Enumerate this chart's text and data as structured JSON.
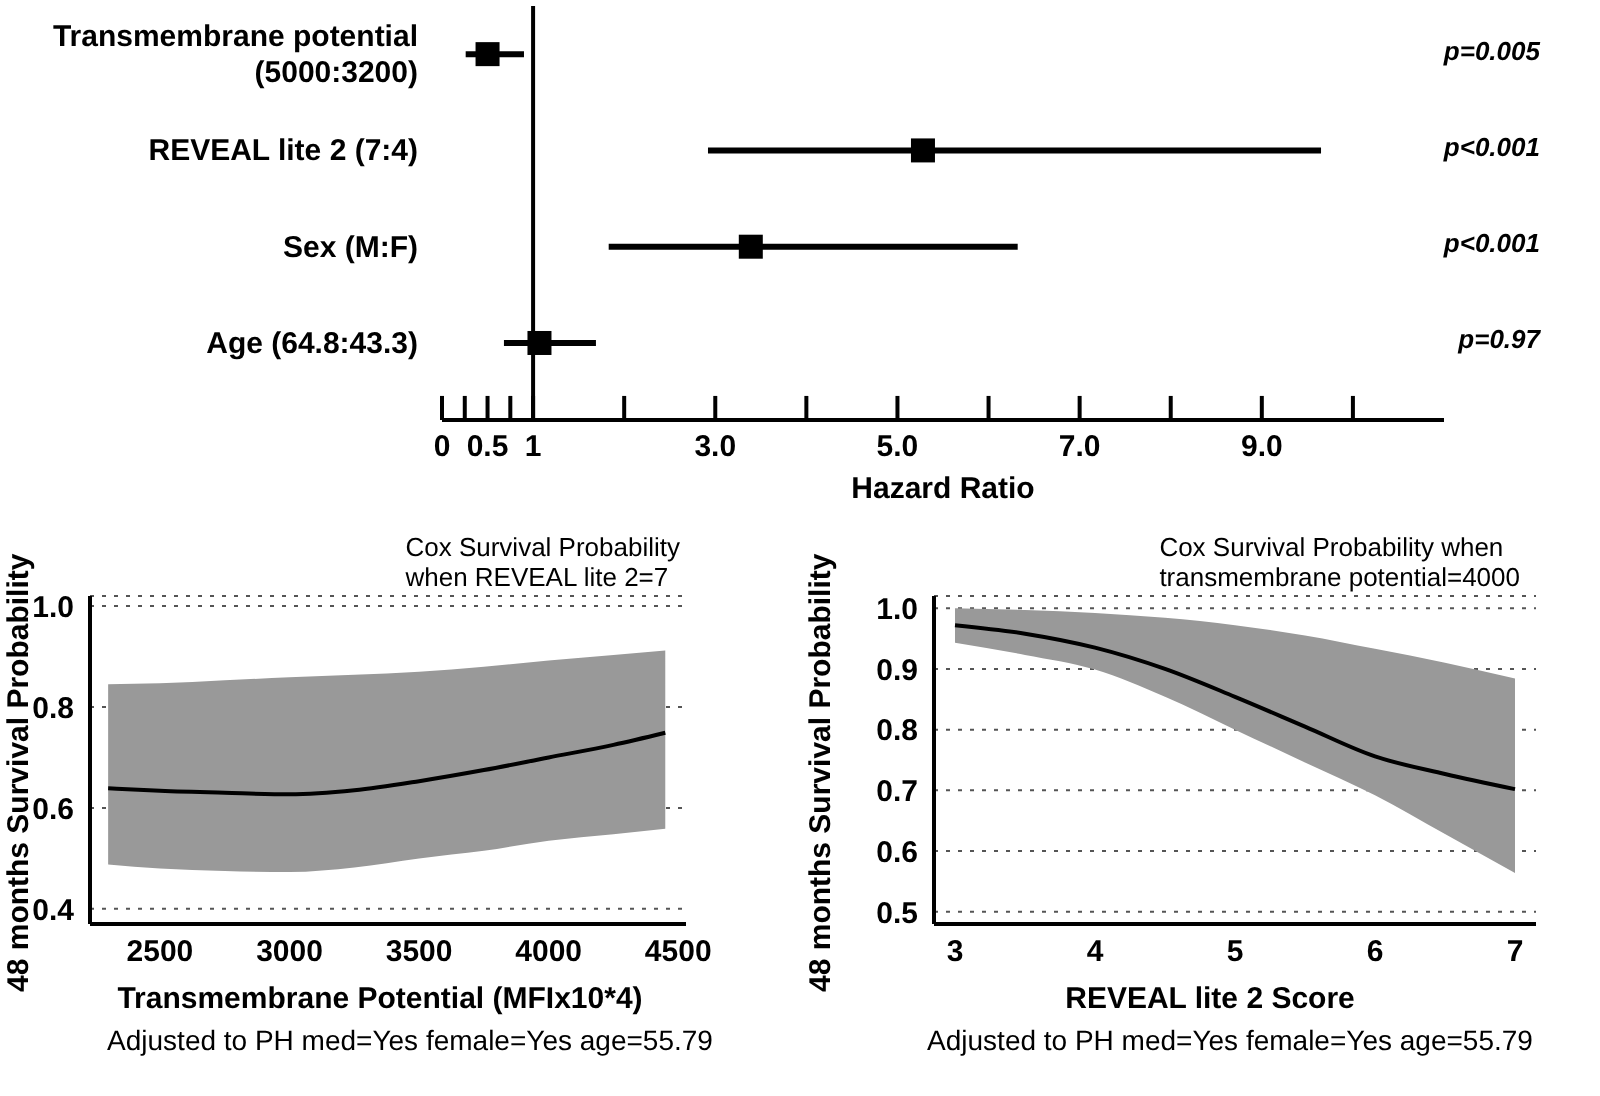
{
  "chart_data": [
    {
      "type": "scatter",
      "orientation": "horizontal",
      "categories": [
        "Transmembrane potential (5000:3200)",
        "REVEAL lite 2 (7:4)",
        "Sex (M:F)",
        "Age (64.8:43.3)"
      ],
      "values": [
        0.5,
        5.28,
        3.39,
        1.07
      ],
      "errors": [
        [
          0.26,
          0.9
        ],
        [
          2.92,
          9.65
        ],
        [
          1.83,
          6.32
        ],
        [
          0.68,
          1.69
        ]
      ],
      "color": "#000000",
      "marker": "square",
      "xlabel": "Hazard Ratio",
      "xlim": [
        0,
        11
      ],
      "xticks": [
        0,
        {
          "value": 0.25,
          "label": null
        },
        0.5,
        {
          "value": 0.75,
          "label": null
        },
        1,
        {
          "value": 2,
          "label": null
        },
        {
          "value": 3,
          "label": "3.0"
        },
        {
          "value": 4,
          "label": null
        },
        {
          "value": 5,
          "label": "5.0"
        },
        {
          "value": 6,
          "label": null
        },
        {
          "value": 7,
          "label": "7.0"
        },
        {
          "value": 8,
          "label": null
        },
        {
          "value": 9,
          "label": "9.0"
        },
        {
          "value": 10,
          "label": null
        }
      ],
      "ref_lines": [
        {
          "axis": "x",
          "value": 1,
          "color": "#000000"
        }
      ],
      "annotations": [
        "p=0.005",
        "p<0.001",
        "p<0.001",
        "p=0.97"
      ]
    },
    {
      "type": "line",
      "title": "Cox Survival Probability\nwhen REVEAL lite 2=7",
      "xlabel": "Transmembrane Potential (MFIx10*4)",
      "ylabel": "48 months Survival Probability",
      "annotations": [
        "Adjusted to PH med=Yes female=Yes age=55.79"
      ],
      "xlim": [
        2230,
        4530
      ],
      "xticks": [
        2500,
        3000,
        3500,
        4000,
        4500
      ],
      "ylim": [
        0.37,
        1.02
      ],
      "yticks": [
        {
          "value": 0.4,
          "label": "0.4"
        },
        {
          "value": 0.6,
          "label": "0.6"
        },
        {
          "value": 0.8,
          "label": "0.8"
        },
        {
          "value": 1,
          "label": "1.0"
        }
      ],
      "grid": "y",
      "marker": "none",
      "line_style": "solid",
      "x": [
        2300,
        2500,
        2750,
        3000,
        3250,
        3500,
        3750,
        4000,
        4250,
        4450
      ],
      "series": [
        {
          "color": "#000000",
          "values": [
            0.639,
            0.634,
            0.63,
            0.627,
            0.635,
            0.653,
            0.675,
            0.7,
            0.725,
            0.749
          ],
          "lower": [
            0.488,
            0.48,
            0.475,
            0.473,
            0.482,
            0.5,
            0.515,
            0.535,
            0.548,
            0.559
          ],
          "upper": [
            0.845,
            0.847,
            0.853,
            0.859,
            0.864,
            0.87,
            0.88,
            0.892,
            0.903,
            0.912
          ]
        }
      ]
    },
    {
      "type": "line",
      "title": "Cox Survival Probability when\ntransmembrane potential=4000",
      "xlabel": "REVEAL lite 2 Score",
      "ylabel": "48 months Survival Probability",
      "annotations": [
        "Adjusted to PH med=Yes female=Yes age=55.79"
      ],
      "xlim": [
        2.85,
        7.15
      ],
      "xticks": [
        3,
        4,
        5,
        6,
        7
      ],
      "ylim": [
        0.48,
        1.02
      ],
      "yticks": [
        0.5,
        0.6,
        0.7,
        0.8,
        0.9,
        {
          "value": 1,
          "label": "1.0"
        }
      ],
      "grid": "y",
      "marker": "none",
      "line_style": "solid",
      "x": [
        3,
        3.5,
        4,
        4.5,
        5,
        5.5,
        6,
        6.5,
        7
      ],
      "series": [
        {
          "color": "#000000",
          "values": [
            0.972,
            0.958,
            0.935,
            0.9,
            0.854,
            0.805,
            0.756,
            0.727,
            0.702
          ],
          "lower": [
            0.943,
            0.923,
            0.899,
            0.854,
            0.8,
            0.746,
            0.692,
            0.628,
            0.564
          ],
          "upper": [
            1.0,
            0.997,
            0.992,
            0.984,
            0.972,
            0.955,
            0.933,
            0.91,
            0.884
          ]
        }
      ]
    }
  ]
}
